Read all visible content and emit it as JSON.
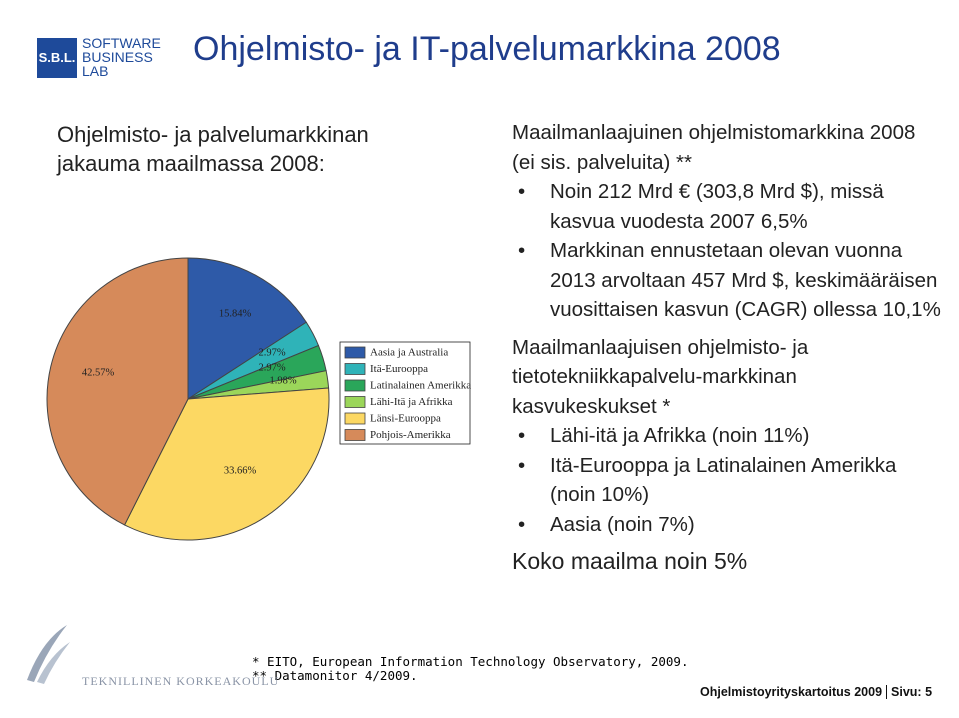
{
  "header": {
    "logo_mark": "S.B.L.",
    "logo_lines": [
      "SOFTWARE",
      "BUSINESS",
      "LAB"
    ],
    "title": "Ohjelmisto- ja IT-palvelumarkkina 2008"
  },
  "left_heading": [
    "Ohjelmisto- ja palvelumarkkinan",
    "jakauma maailmassa 2008:"
  ],
  "chart_data": {
    "type": "pie",
    "categories": [
      "Aasia ja Australia",
      "Itä-Eurooppa",
      "Latinalainen Amerikka",
      "Lähi-Itä ja Afrikka",
      "Länsi-Eurooppa",
      "Pohjois-Amerikka"
    ],
    "values": [
      15.84,
      2.97,
      2.97,
      1.98,
      33.66,
      42.57
    ],
    "value_labels": [
      "15.84%",
      "2.97%",
      "2.97%",
      "1.98%",
      "33.66%",
      "42.57%"
    ],
    "colors": [
      "#2e5aa8",
      "#2fb3b8",
      "#2aa65a",
      "#9bd65a",
      "#fcd863",
      "#d68a5a"
    ],
    "legend": "right"
  },
  "right": {
    "sections": [
      {
        "heading": "Maailmanlaajuinen ohjelmistomarkkina 2008 (ei sis. palveluita) **",
        "bullets": [
          "Noin 212 Mrd € (303,8 Mrd $), missä kasvua vuodesta 2007 6,5%",
          "Markkinan ennustetaan olevan vuonna 2013 arvoltaan 457 Mrd $, keskimääräisen vuosittaisen kasvun (CAGR) ollessa 10,1%"
        ]
      },
      {
        "heading": "Maailmanlaajuisen ohjelmisto- ja tietotekniikkapalvelu-markkinan kasvukeskukset *",
        "bullets": [
          "Lähi-itä ja Afrikka (noin 11%)",
          "Itä-Eurooppa ja Latinalainen Amerikka (noin 10%)",
          "Aasia (noin 7%)"
        ]
      }
    ],
    "conclusion": "Koko maailma noin 5%"
  },
  "footnotes": [
    "*   EITO, European Information Technology Observatory, 2009.",
    "** Datamonitor 4/2009."
  ],
  "footer": {
    "institution": "TEKNILLINEN KORKEAKOULU",
    "report": "Ohjelmistoyrityskartoitus 2009",
    "page": "Sivu: 5"
  }
}
